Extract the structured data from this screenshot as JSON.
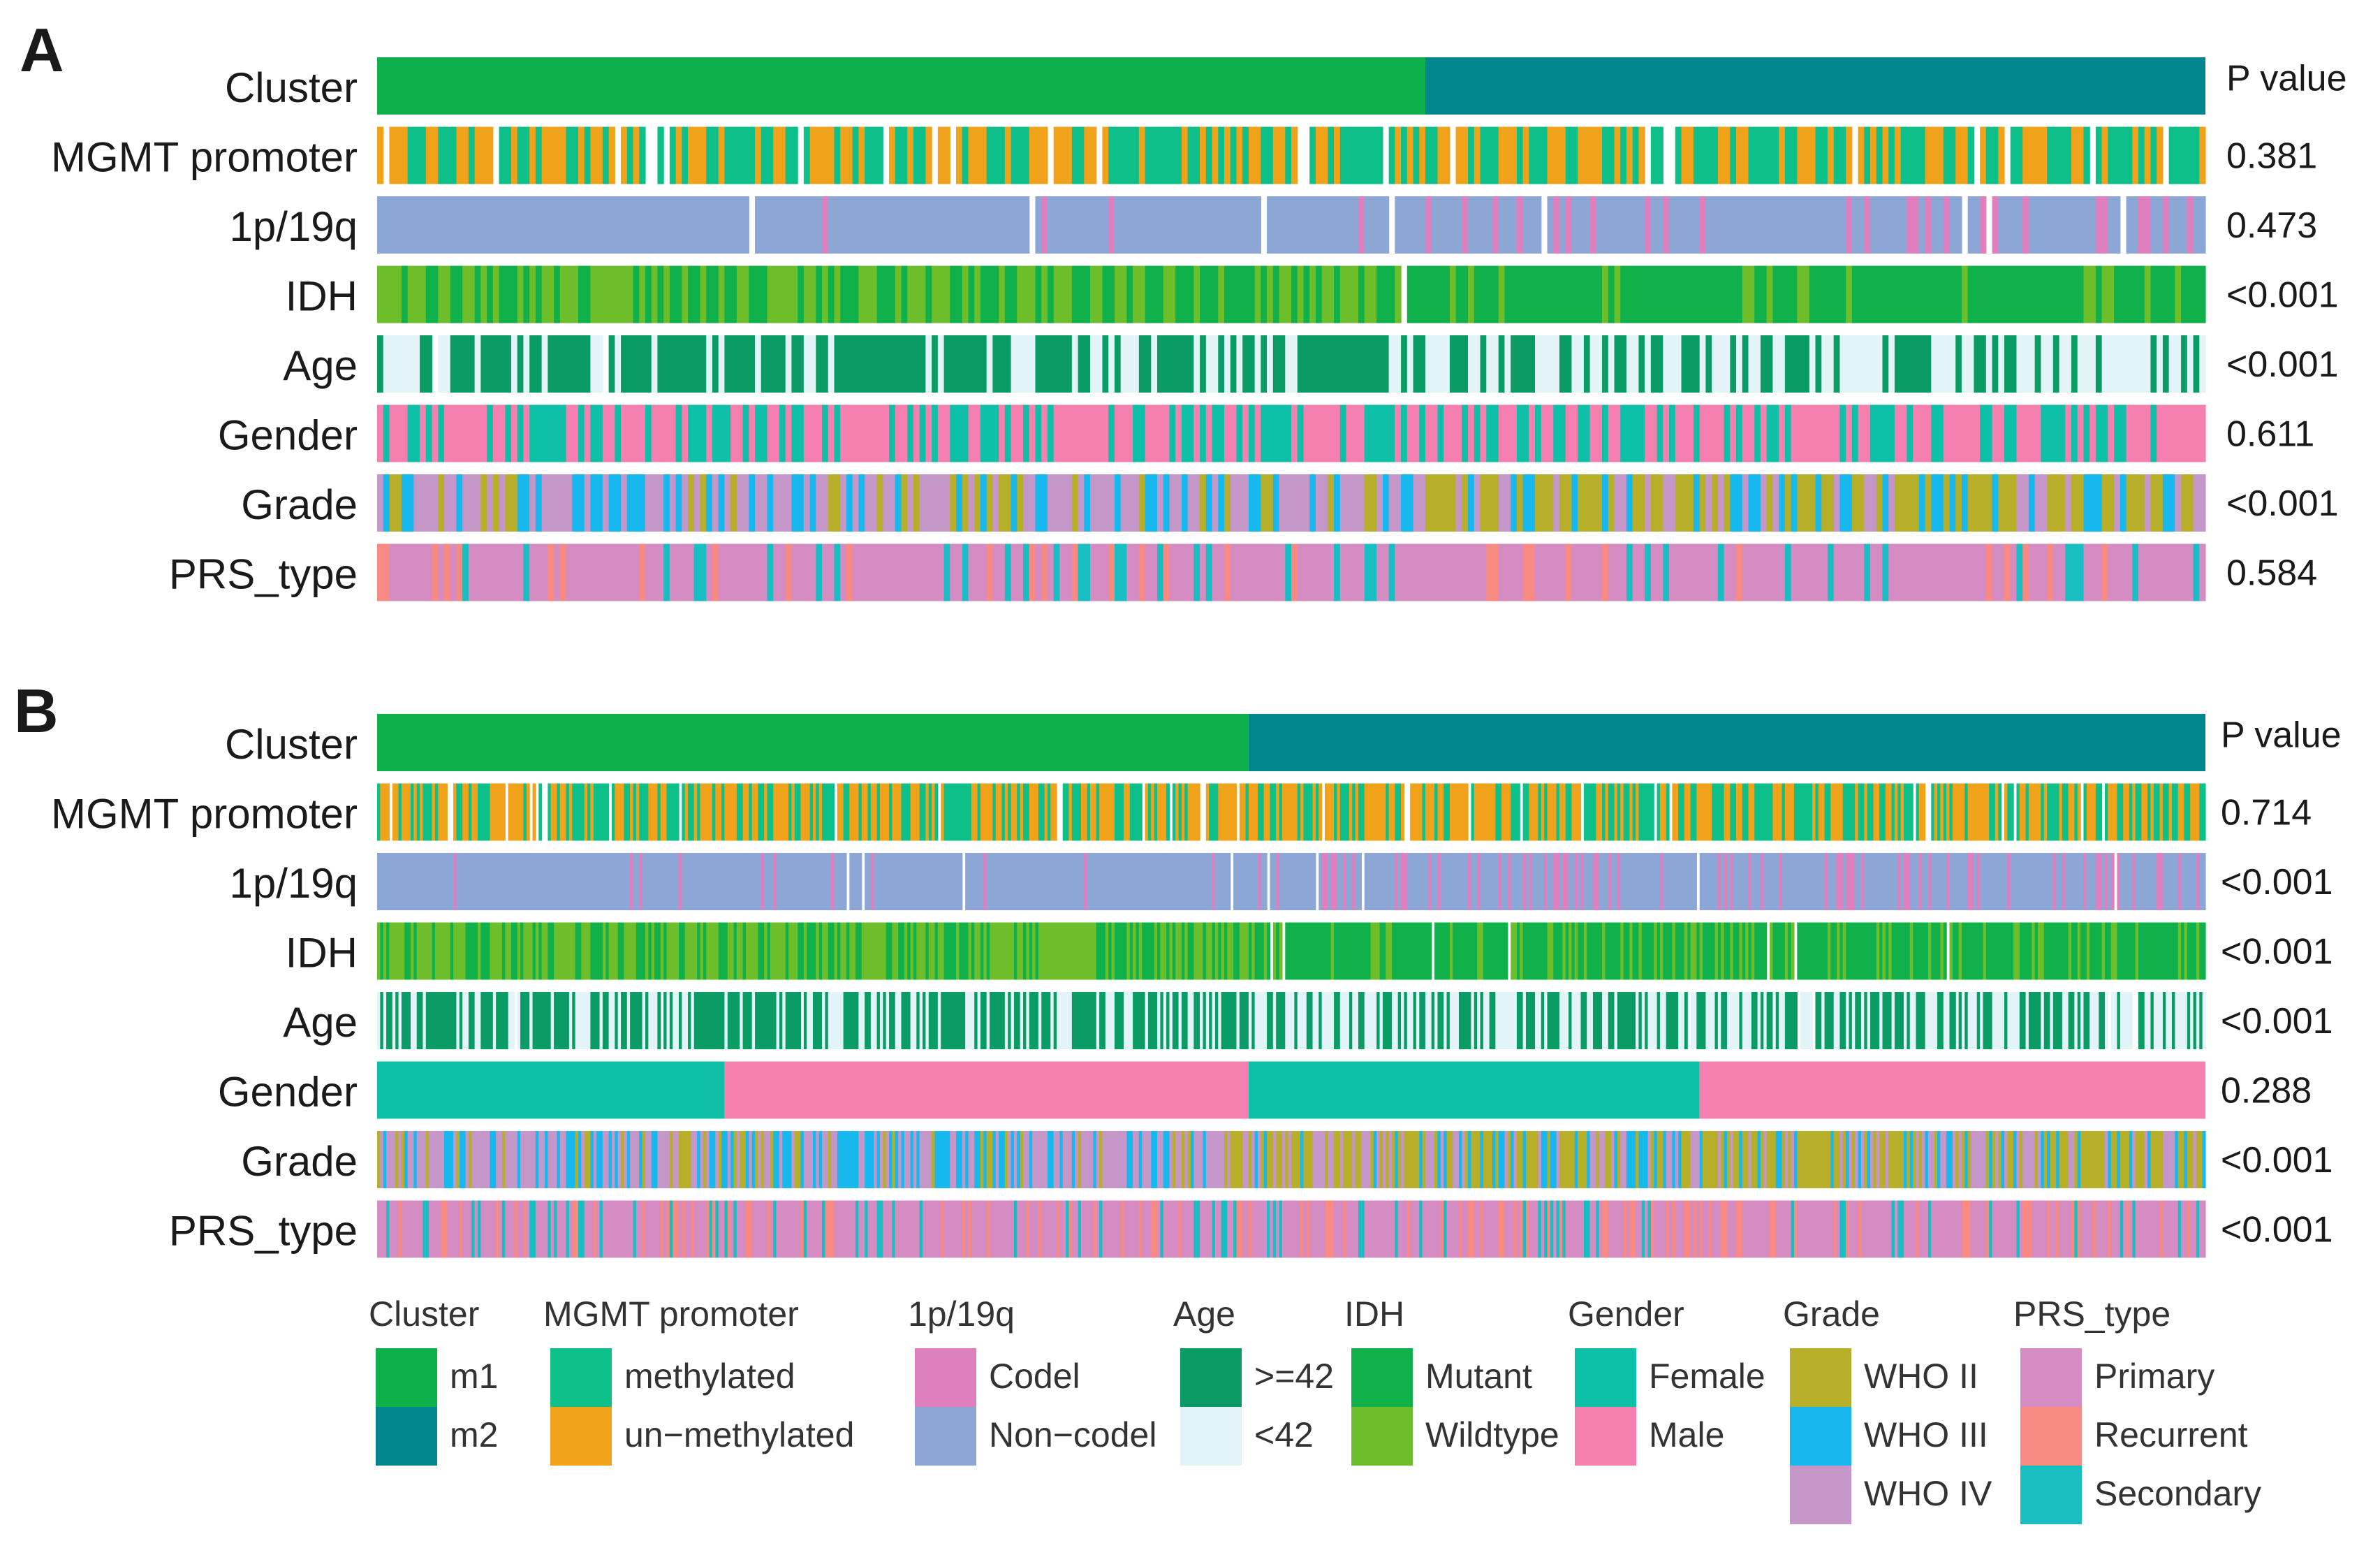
{
  "colors": {
    "cluster": {
      "m1": "#0DB04B",
      "m2": "#00878E"
    },
    "mgmt": {
      "methylated": "#0DC08A",
      "unmethylated": "#F0A21B"
    },
    "codel": {
      "Codel": "#E07FBD",
      "Non-codel": "#8CA6D6"
    },
    "age": {
      ">=42": "#0B9B64",
      "<42": "#E3F4F8"
    },
    "idh": {
      "Mutant": "#10B04A",
      "Wildtype": "#6EBE2B"
    },
    "gender": {
      "Female": "#0FC0A8",
      "Male": "#F57FAF"
    },
    "grade": {
      "WHO II": "#B7AE29",
      "WHO III": "#16B8EE",
      "WHO IV": "#C497C8"
    },
    "prs": {
      "Primary": "#D48CC3",
      "Recurrent": "#F78A83",
      "Secondary": "#19BEC3"
    }
  },
  "chart_data": [
    {
      "type": "heatmap",
      "panel": "A",
      "pvalue_header": "P value",
      "n_samples": 300,
      "cluster_split": 172,
      "rows": [
        {
          "key": "cluster",
          "label": "Cluster",
          "pvalue": ""
        },
        {
          "key": "mgmt",
          "label": "MGMT promoter",
          "pvalue": "0.381"
        },
        {
          "key": "codel",
          "label": "1p/19q",
          "pvalue": "0.473"
        },
        {
          "key": "idh",
          "label": "IDH",
          "pvalue": "<0.001"
        },
        {
          "key": "age",
          "label": "Age",
          "pvalue": "<0.001"
        },
        {
          "key": "gender",
          "label": "Gender",
          "pvalue": "0.611"
        },
        {
          "key": "grade",
          "label": "Grade",
          "pvalue": "<0.001"
        },
        {
          "key": "prs",
          "label": "PRS_type",
          "pvalue": "0.584"
        }
      ]
    },
    {
      "type": "heatmap",
      "panel": "B",
      "pvalue_header": "P value",
      "n_samples": 600,
      "cluster_split": 286,
      "rows": [
        {
          "key": "cluster",
          "label": "Cluster",
          "pvalue": ""
        },
        {
          "key": "mgmt",
          "label": "MGMT promoter",
          "pvalue": "0.714"
        },
        {
          "key": "codel",
          "label": "1p/19q",
          "pvalue": "<0.001"
        },
        {
          "key": "idh",
          "label": "IDH",
          "pvalue": "<0.001"
        },
        {
          "key": "age",
          "label": "Age",
          "pvalue": "<0.001"
        },
        {
          "key": "gender",
          "label": "Gender",
          "pvalue": "0.288"
        },
        {
          "key": "grade",
          "label": "Grade",
          "pvalue": "<0.001"
        },
        {
          "key": "prs",
          "label": "PRS_type",
          "pvalue": "<0.001"
        }
      ]
    }
  ],
  "legend": [
    {
      "title": "Cluster",
      "key": "cluster",
      "items": [
        "m1",
        "m2"
      ]
    },
    {
      "title": "MGMT promoter",
      "key": "mgmt",
      "items": [
        {
          "label": "methylated",
          "color_key": "methylated"
        },
        {
          "label": "un−methylated",
          "color_key": "unmethylated"
        }
      ]
    },
    {
      "title": "1p/19q",
      "key": "codel",
      "items": [
        "Codel",
        "Non−codel"
      ]
    },
    {
      "title": "Age",
      "key": "age",
      "items": [
        ">=42",
        "<42"
      ]
    },
    {
      "title": "IDH",
      "key": "idh",
      "items": [
        "Mutant",
        "Wildtype"
      ]
    },
    {
      "title": "Gender",
      "key": "gender",
      "items": [
        "Female",
        "Male"
      ]
    },
    {
      "title": "Grade",
      "key": "grade",
      "items": [
        "WHO II",
        "WHO III",
        "WHO IV"
      ]
    },
    {
      "title": "PRS_type",
      "key": "prs",
      "items": [
        "Primary",
        "Recurrent",
        "Secondary"
      ]
    }
  ]
}
